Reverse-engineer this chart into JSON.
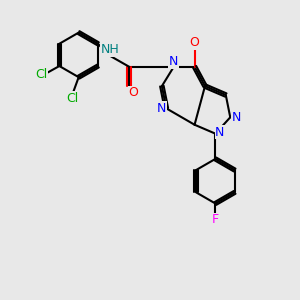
{
  "background_color": "#e8e8e8",
  "bond_color": "#000000",
  "ring_color": "#000000",
  "atom_colors": {
    "N": "#0000ff",
    "O": "#ff0000",
    "Cl": "#00aa00",
    "F": "#ff00ff",
    "H_label": "#008080",
    "C": "#000000"
  },
  "title": "",
  "figsize": [
    3.0,
    3.0
  ],
  "dpi": 100
}
